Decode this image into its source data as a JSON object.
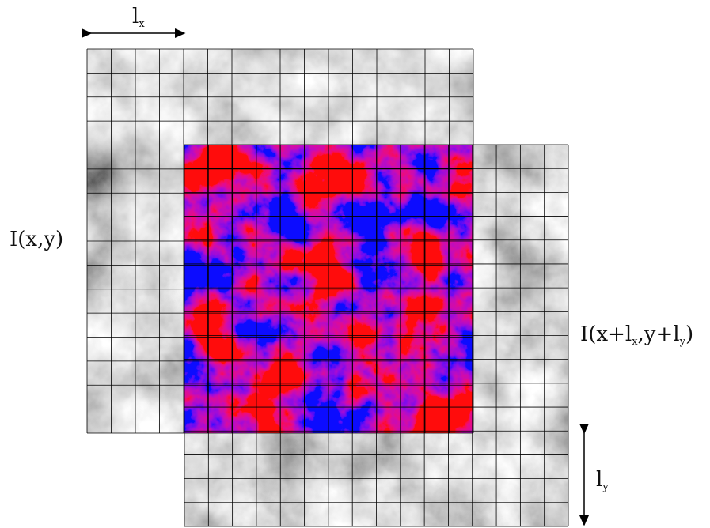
{
  "labels": {
    "image_original": "I(x,y)",
    "shift_x_base": "l",
    "shift_x_sub": "x",
    "shift_y_base": "l",
    "shift_y_sub": "y",
    "shifted_prefix": "I(x+l",
    "shifted_sub1": "x",
    "shifted_mid": ",y+l",
    "shifted_sub2": "y",
    "shifted_suffix": ")"
  },
  "grid": {
    "cells_x": 16,
    "cells_y": 16
  },
  "colors": {
    "grid_line": "#000000",
    "positive": "#e0000a",
    "negative": "#0000e0",
    "neutral": "#ffffff",
    "gray_dark": "#2e2e2e",
    "gray_light": "#dcdcdc"
  }
}
